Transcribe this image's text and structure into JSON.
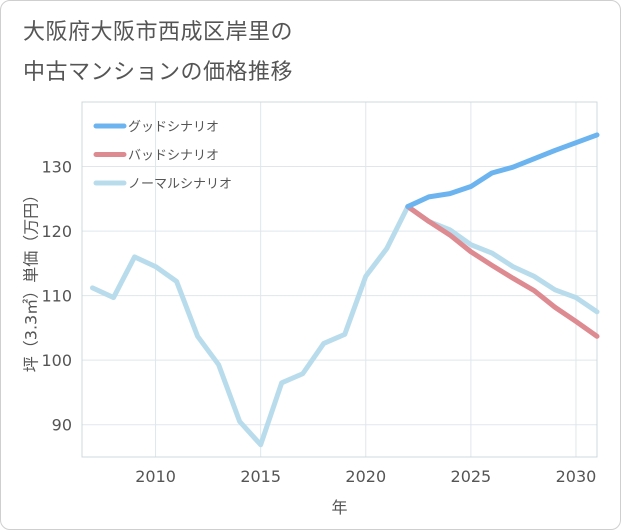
{
  "title_lines": [
    "大阪府大阪市西成区岸里の",
    "中古マンションの価格推移"
  ],
  "chart_data": {
    "type": "line",
    "xlabel": "年",
    "ylabel": "坪（3.3㎡）単価（万円）",
    "xlim": [
      2006.5,
      2031
    ],
    "ylim": [
      85,
      140
    ],
    "xticks": [
      2010,
      2015,
      2020,
      2025,
      2030
    ],
    "yticks": [
      90,
      100,
      110,
      120,
      130
    ],
    "grid": true,
    "legend_position": "top-left",
    "series": [
      {
        "name": "グッドシナリオ",
        "color": "#6cb4ef",
        "x": [
          2022,
          2023,
          2024,
          2025,
          2026,
          2027,
          2028,
          2029,
          2030,
          2031
        ],
        "values": [
          123.8,
          125.3,
          125.8,
          126.9,
          129.0,
          129.9,
          131.2,
          132.5,
          133.7,
          134.9
        ]
      },
      {
        "name": "バッドシナリオ",
        "color": "#de8a91",
        "x": [
          2022,
          2023,
          2024,
          2025,
          2026,
          2027,
          2028,
          2029,
          2030,
          2031
        ],
        "values": [
          123.8,
          121.5,
          119.4,
          116.8,
          114.7,
          112.7,
          110.8,
          108.2,
          106.0,
          103.7
        ]
      },
      {
        "name": "ノーマルシナリオ",
        "color": "#b9dcec",
        "x": [
          2007,
          2008,
          2009,
          2010,
          2011,
          2012,
          2013,
          2014,
          2015,
          2016,
          2017,
          2018,
          2019,
          2020,
          2021,
          2022,
          2023,
          2024,
          2025,
          2026,
          2027,
          2028,
          2029,
          2030,
          2031
        ],
        "values": [
          111.2,
          109.7,
          116.0,
          114.5,
          112.2,
          103.7,
          99.3,
          90.5,
          86.9,
          96.5,
          97.9,
          102.6,
          104.0,
          113.0,
          117.3,
          123.8,
          121.5,
          120.2,
          117.9,
          116.6,
          114.5,
          113.0,
          110.9,
          109.7,
          107.5
        ]
      }
    ]
  }
}
